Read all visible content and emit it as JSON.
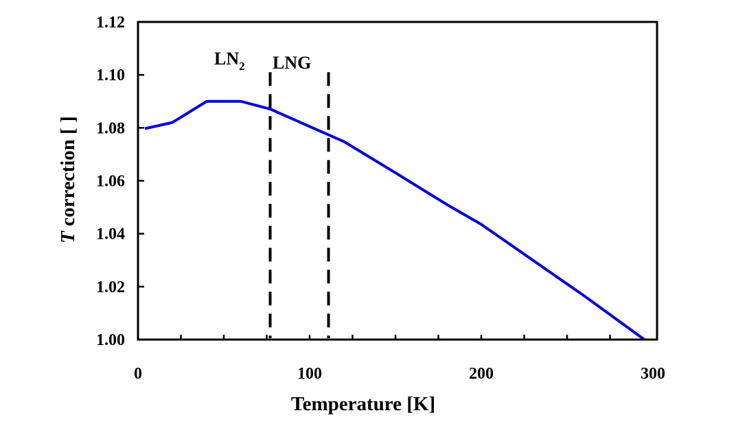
{
  "chart_data": {
    "type": "line",
    "title": "",
    "xlabel": "Temperature  [K]",
    "ylabel_italic": "T",
    "ylabel_rest": " correction  [ ]",
    "xlim": [
      0,
      300
    ],
    "ylim": [
      1.0,
      1.12
    ],
    "xticks": [
      0,
      100,
      200,
      300
    ],
    "xtick_labels": [
      "0",
      "100",
      "200",
      "300"
    ],
    "x_minor_step": 25,
    "yticks": [
      1.0,
      1.02,
      1.04,
      1.06,
      1.08,
      1.1,
      1.12
    ],
    "ytick_labels": [
      "1.00",
      "1.02",
      "1.04",
      "1.06",
      "1.08",
      "1.10",
      "1.12"
    ],
    "grid": false,
    "series": [
      {
        "color": "#0000dd",
        "x": [
          4,
          20,
          40,
          60,
          77,
          100,
          120,
          150,
          180,
          200,
          230,
          260,
          295
        ],
        "y": [
          1.0797,
          1.082,
          1.09,
          1.09,
          1.0871,
          1.0805,
          1.0748,
          1.063,
          1.051,
          1.0435,
          1.03,
          1.0165,
          1.0
        ]
      }
    ],
    "vlines": [
      {
        "x": 77,
        "label_main": "LN",
        "label_sub": "2",
        "style": "dashed"
      },
      {
        "x": 111,
        "label_main": "LNG",
        "label_sub": "",
        "style": "dashed"
      }
    ],
    "vline_top": 1.101
  }
}
